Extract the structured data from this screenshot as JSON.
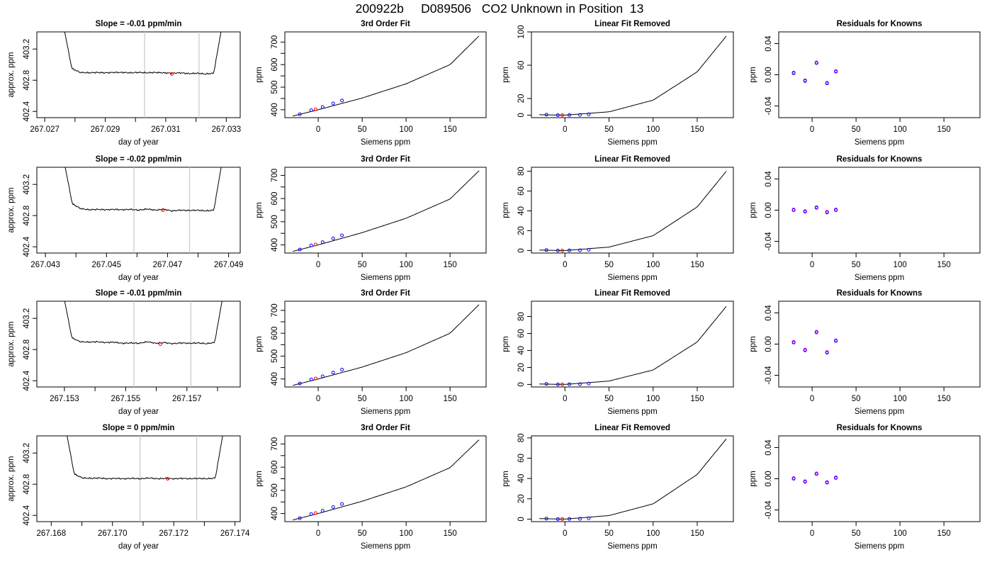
{
  "page": {
    "title": "200922b     D089506   CO2 Unknown in Position  13"
  },
  "chart_data": [
    {
      "type": "line",
      "row": 0,
      "col": 0,
      "title": "Slope =  -0.01  ppm/min",
      "xlabel": "day of year",
      "ylabel": "approx. ppm",
      "xlim": [
        267.02674,
        267.03346
      ],
      "ylim": [
        402.32,
        403.42
      ],
      "xticks": [
        "267.027",
        "267.029",
        "267.031",
        "267.033"
      ],
      "xtick_minor": true,
      "yticks": [
        402.4,
        402.8,
        403.2
      ],
      "vlines": [
        267.0303,
        267.0321
      ],
      "trace": {
        "x0": 267.02762,
        "x1": 267.03286,
        "y": [
          403.5,
          402.95,
          402.9,
          402.895,
          402.9,
          402.895,
          402.9,
          402.9,
          402.895,
          402.9,
          402.895,
          402.9,
          402.895,
          402.89,
          402.895,
          402.885,
          402.89,
          402.88,
          402.89,
          403.5
        ]
      },
      "marker": {
        "x": 267.0312,
        "y": 402.88,
        "color": "#ff0000"
      }
    },
    {
      "type": "line",
      "row": 0,
      "col": 1,
      "title": "3rd Order Fit",
      "xlabel": "Siemens ppm",
      "ylabel": "ppm",
      "xlim": [
        -38,
        191
      ],
      "ylim": [
        365,
        745
      ],
      "xticks": [
        0,
        50,
        100,
        150
      ],
      "yticks": [
        400,
        500,
        600,
        700
      ],
      "ytick_minor": true,
      "curve": {
        "x": [
          -29,
          0,
          50,
          100,
          150,
          183
        ],
        "y": [
          372,
          400,
          452,
          515,
          600,
          727
        ]
      },
      "points_blue": [
        [
          -21,
          380
        ],
        [
          -8,
          398
        ],
        [
          5,
          412
        ],
        [
          17,
          428
        ],
        [
          27,
          441
        ]
      ],
      "points_red": [
        [
          -3,
          402
        ]
      ]
    },
    {
      "type": "line",
      "row": 0,
      "col": 2,
      "title": "Linear Fit Removed",
      "xlabel": "Siemens ppm",
      "ylabel": "ppm",
      "xlim": [
        -38,
        191
      ],
      "ylim": [
        -3,
        100
      ],
      "xticks": [
        0,
        50,
        100,
        150
      ],
      "yticks": [
        0,
        20,
        60,
        100
      ],
      "curve": {
        "x": [
          -29,
          0,
          50,
          100,
          150,
          183
        ],
        "y": [
          0.5,
          0,
          4,
          18,
          52,
          95
        ]
      },
      "points_blue": [
        [
          -21,
          0.6
        ],
        [
          -8,
          0
        ],
        [
          5,
          0.2
        ],
        [
          17,
          0.3
        ],
        [
          27,
          1
        ]
      ],
      "points_red": [
        [
          -3,
          0
        ]
      ]
    },
    {
      "type": "scatter",
      "row": 0,
      "col": 3,
      "title": "Residuals for Knowns",
      "xlabel": "Siemens ppm",
      "ylabel": "ppm",
      "xlim": [
        -38,
        191
      ],
      "ylim": [
        -0.055,
        0.055
      ],
      "xticks": [
        0,
        50,
        100,
        150
      ],
      "yticks": [
        -0.04,
        0.0,
        0.04
      ],
      "ytick_labels": [
        "-0.04",
        "0.00",
        "0.04"
      ],
      "points_purple": [
        [
          -21,
          0.002
        ],
        [
          -8,
          -0.008
        ],
        [
          5,
          0.015
        ],
        [
          17,
          -0.011
        ],
        [
          27,
          0.004
        ]
      ]
    },
    {
      "type": "line",
      "row": 1,
      "col": 0,
      "title": "Slope =  -0.02  ppm/min",
      "xlabel": "day of year",
      "ylabel": "approx. ppm",
      "xlim": [
        267.04272,
        267.04938
      ],
      "ylim": [
        402.32,
        403.42
      ],
      "xticks": [
        "267.043",
        "267.045",
        "267.047",
        "267.049"
      ],
      "xtick_minor": true,
      "yticks": [
        402.4,
        402.8,
        403.2
      ],
      "vlines": [
        267.0459,
        267.04772
      ],
      "trace": {
        "x0": 267.04361,
        "x1": 267.04879,
        "y": [
          403.5,
          402.95,
          402.89,
          402.875,
          402.88,
          402.875,
          402.88,
          402.875,
          402.88,
          402.87,
          402.885,
          402.87,
          402.88,
          402.86,
          402.87,
          402.865,
          402.87,
          402.86,
          402.87,
          403.5
        ]
      },
      "marker": {
        "x": 267.04685,
        "y": 402.87,
        "color": "#ff0000"
      }
    },
    {
      "type": "line",
      "row": 1,
      "col": 1,
      "title": "3rd Order Fit",
      "xlabel": "Siemens ppm",
      "ylabel": "ppm",
      "xlim": [
        -38,
        191
      ],
      "ylim": [
        365,
        735
      ],
      "xticks": [
        0,
        50,
        100,
        150
      ],
      "yticks": [
        400,
        500,
        600,
        700
      ],
      "ytick_minor": true,
      "curve": {
        "x": [
          -29,
          0,
          50,
          100,
          150,
          183
        ],
        "y": [
          372,
          400,
          453,
          515,
          598,
          720
        ]
      },
      "points_blue": [
        [
          -21,
          380
        ],
        [
          -8,
          398
        ],
        [
          5,
          412
        ],
        [
          17,
          428
        ],
        [
          27,
          441
        ]
      ],
      "points_red": [
        [
          -3,
          402
        ]
      ]
    },
    {
      "type": "line",
      "row": 1,
      "col": 2,
      "title": "Linear Fit Removed",
      "xlabel": "Siemens ppm",
      "ylabel": "ppm",
      "xlim": [
        -38,
        191
      ],
      "ylim": [
        -2.5,
        84
      ],
      "xticks": [
        0,
        50,
        100,
        150
      ],
      "yticks": [
        0,
        20,
        40,
        60,
        80
      ],
      "curve": {
        "x": [
          -29,
          0,
          50,
          100,
          150,
          183
        ],
        "y": [
          0.5,
          0,
          3.5,
          15,
          44,
          80
        ]
      },
      "points_blue": [
        [
          -21,
          0.5
        ],
        [
          -8,
          0
        ],
        [
          5,
          0.2
        ],
        [
          17,
          0.3
        ],
        [
          27,
          0.8
        ]
      ],
      "points_red": [
        [
          -3,
          0
        ]
      ]
    },
    {
      "type": "scatter",
      "row": 1,
      "col": 3,
      "title": "Residuals for Knowns",
      "xlabel": "Siemens ppm",
      "ylabel": "ppm",
      "xlim": [
        -38,
        191
      ],
      "ylim": [
        -0.055,
        0.055
      ],
      "xticks": [
        0,
        50,
        100,
        150
      ],
      "yticks": [
        -0.04,
        0.0,
        0.04
      ],
      "ytick_labels": [
        "-0.04",
        "0.00",
        "0.04"
      ],
      "points_purple": [
        [
          -21,
          0.0
        ],
        [
          -8,
          -0.002
        ],
        [
          5,
          0.003
        ],
        [
          17,
          -0.003
        ],
        [
          27,
          0.0
        ]
      ]
    },
    {
      "type": "line",
      "row": 2,
      "col": 0,
      "title": "Slope =  -0.01  ppm/min",
      "xlabel": "day of year",
      "ylabel": "approx. ppm",
      "xlim": [
        267.1521,
        267.15874
      ],
      "ylim": [
        402.32,
        403.42
      ],
      "xticks": [
        "267.153",
        "267.155",
        "267.157"
      ],
      "xtick_minor": true,
      "yticks": [
        402.4,
        402.8,
        403.2
      ],
      "vlines": [
        267.15527,
        267.15713
      ],
      "trace": {
        "x0": 267.15297,
        "x1": 267.15818,
        "y": [
          403.5,
          402.95,
          402.9,
          402.895,
          402.9,
          402.89,
          402.895,
          402.88,
          402.885,
          402.88,
          402.9,
          402.88,
          402.89,
          402.875,
          402.885,
          402.88,
          402.885,
          402.875,
          402.89,
          403.5
        ]
      },
      "marker": {
        "x": 267.15613,
        "y": 402.87,
        "color": "#ff0000"
      }
    },
    {
      "type": "line",
      "row": 2,
      "col": 1,
      "title": "3rd Order Fit",
      "xlabel": "Siemens ppm",
      "ylabel": "ppm",
      "xlim": [
        -38,
        191
      ],
      "ylim": [
        365,
        740
      ],
      "xticks": [
        0,
        50,
        100,
        150
      ],
      "yticks": [
        400,
        500,
        600,
        700
      ],
      "ytick_minor": true,
      "curve": {
        "x": [
          -29,
          0,
          50,
          100,
          150,
          183
        ],
        "y": [
          372,
          400,
          452,
          515,
          600,
          725
        ]
      },
      "points_blue": [
        [
          -21,
          380
        ],
        [
          -8,
          398
        ],
        [
          5,
          412
        ],
        [
          17,
          428
        ],
        [
          27,
          441
        ]
      ],
      "points_red": [
        [
          -3,
          402
        ]
      ]
    },
    {
      "type": "line",
      "row": 2,
      "col": 2,
      "title": "Linear Fit Removed",
      "xlabel": "Siemens ppm",
      "ylabel": "ppm",
      "xlim": [
        -38,
        191
      ],
      "ylim": [
        -3,
        98
      ],
      "xticks": [
        0,
        50,
        100,
        150
      ],
      "yticks": [
        0,
        20,
        40,
        60,
        80
      ],
      "curve": {
        "x": [
          -29,
          0,
          50,
          100,
          150,
          183
        ],
        "y": [
          0.5,
          0,
          4,
          17,
          50,
          92
        ]
      },
      "points_blue": [
        [
          -21,
          0.6
        ],
        [
          -8,
          0
        ],
        [
          5,
          0.2
        ],
        [
          17,
          0.3
        ],
        [
          27,
          1
        ]
      ],
      "points_red": [
        [
          -3,
          0
        ]
      ]
    },
    {
      "type": "scatter",
      "row": 2,
      "col": 3,
      "title": "Residuals for Knowns",
      "xlabel": "Siemens ppm",
      "ylabel": "ppm",
      "xlim": [
        -38,
        191
      ],
      "ylim": [
        -0.055,
        0.055
      ],
      "xticks": [
        0,
        50,
        100,
        150
      ],
      "yticks": [
        -0.04,
        0.0,
        0.04
      ],
      "ytick_labels": [
        "-0.04",
        "0.00",
        "0.04"
      ],
      "points_purple": [
        [
          -21,
          0.002
        ],
        [
          -8,
          -0.008
        ],
        [
          5,
          0.015
        ],
        [
          17,
          -0.011
        ],
        [
          27,
          0.004
        ]
      ]
    },
    {
      "type": "line",
      "row": 3,
      "col": 0,
      "title": "Slope =  0  ppm/min",
      "xlabel": "day of year",
      "ylabel": "approx. ppm",
      "xlim": [
        267.16753,
        267.17417
      ],
      "ylim": [
        402.32,
        403.42
      ],
      "xticks": [
        "267.168",
        "267.170",
        "267.172",
        "267.174"
      ],
      "xtick_minor": true,
      "yticks": [
        402.4,
        402.8,
        403.2
      ],
      "vlines": [
        267.1709,
        267.17275
      ],
      "trace": {
        "x0": 267.16848,
        "x1": 267.17363,
        "y": [
          403.5,
          402.93,
          402.88,
          402.875,
          402.88,
          402.87,
          402.875,
          402.87,
          402.875,
          402.87,
          402.88,
          402.87,
          402.875,
          402.87,
          402.875,
          402.87,
          402.875,
          402.87,
          402.88,
          403.5
        ]
      },
      "marker": {
        "x": 267.1718,
        "y": 402.87,
        "color": "#ff0000"
      }
    },
    {
      "type": "line",
      "row": 3,
      "col": 1,
      "title": "3rd Order Fit",
      "xlabel": "Siemens ppm",
      "ylabel": "ppm",
      "xlim": [
        -38,
        191
      ],
      "ylim": [
        365,
        735
      ],
      "xticks": [
        0,
        50,
        100,
        150
      ],
      "yticks": [
        400,
        500,
        600,
        700
      ],
      "ytick_minor": true,
      "curve": {
        "x": [
          -29,
          0,
          50,
          100,
          150,
          183
        ],
        "y": [
          372,
          400,
          453,
          515,
          598,
          718
        ]
      },
      "points_blue": [
        [
          -21,
          380
        ],
        [
          -8,
          398
        ],
        [
          5,
          412
        ],
        [
          17,
          428
        ],
        [
          27,
          441
        ]
      ],
      "points_red": [
        [
          -3,
          402
        ]
      ]
    },
    {
      "type": "line",
      "row": 3,
      "col": 2,
      "title": "Linear Fit Removed",
      "xlabel": "Siemens ppm",
      "ylabel": "ppm",
      "xlim": [
        -38,
        191
      ],
      "ylim": [
        -2.5,
        82
      ],
      "xticks": [
        0,
        50,
        100,
        150
      ],
      "yticks": [
        0,
        20,
        40,
        60,
        80
      ],
      "curve": {
        "x": [
          -29,
          0,
          50,
          100,
          150,
          183
        ],
        "y": [
          0.5,
          0,
          3.5,
          15,
          44,
          79
        ]
      },
      "points_blue": [
        [
          -21,
          0.5
        ],
        [
          -8,
          0
        ],
        [
          5,
          0.2
        ],
        [
          17,
          0.3
        ],
        [
          27,
          0.8
        ]
      ],
      "points_red": [
        [
          -3,
          0
        ]
      ]
    },
    {
      "type": "scatter",
      "row": 3,
      "col": 3,
      "title": "Residuals for Knowns",
      "xlabel": "Siemens ppm",
      "ylabel": "ppm",
      "xlim": [
        -38,
        191
      ],
      "ylim": [
        -0.055,
        0.055
      ],
      "xticks": [
        0,
        50,
        100,
        150
      ],
      "yticks": [
        -0.04,
        0.0,
        0.04
      ],
      "ytick_labels": [
        "-0.04",
        "0.00",
        "0.04"
      ],
      "points_purple": [
        [
          -21,
          0.0
        ],
        [
          -8,
          -0.004
        ],
        [
          5,
          0.006
        ],
        [
          17,
          -0.005
        ],
        [
          27,
          0.001
        ]
      ]
    }
  ]
}
